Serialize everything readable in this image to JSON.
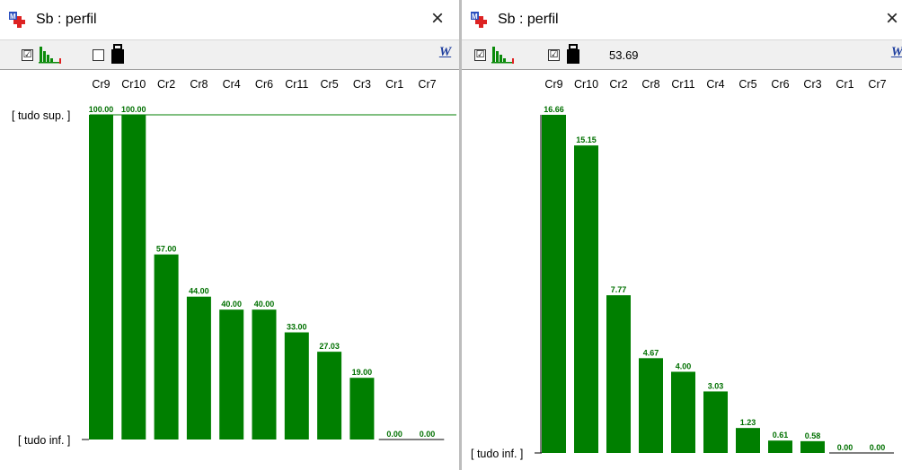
{
  "windows": [
    {
      "title": "Sb : perfil",
      "close_label": "×",
      "toolbar": {
        "checkbox1_mark": "☑",
        "checkbox2_mark": "",
        "value_label": ""
      },
      "upper_label": "[ tudo sup. ]",
      "lower_label": "[ tudo inf. ]"
    },
    {
      "title": "Sb : perfil",
      "close_label": "×",
      "toolbar": {
        "checkbox1_mark": "☑",
        "checkbox2_mark": "☑",
        "value_label": "53.69"
      },
      "upper_label": "",
      "lower_label": "[ tudo inf. ]"
    }
  ],
  "icons": {
    "app": "app-window-icon",
    "histogram": "histogram-icon",
    "weight": "weight-icon",
    "word": "word-export-icon"
  },
  "colors": {
    "bar": "#007f00",
    "label": "#007000",
    "axis": "#000000"
  },
  "chart_data": [
    {
      "type": "bar",
      "categories": [
        "Cr9",
        "Cr10",
        "Cr2",
        "Cr8",
        "Cr4",
        "Cr6",
        "Cr11",
        "Cr5",
        "Cr3",
        "Cr1",
        "Cr7"
      ],
      "values": [
        100.0,
        100.0,
        57.0,
        44.0,
        40.0,
        40.0,
        33.0,
        27.03,
        19.0,
        0.0,
        0.0
      ],
      "value_labels": [
        "100.00",
        "100.00",
        "57.00",
        "44.00",
        "40.00",
        "40.00",
        "33.00",
        "27.03",
        "19.00",
        "0.00",
        "0.00"
      ],
      "ylim": [
        0,
        100
      ],
      "upper_line": true,
      "title": "",
      "xlabel": "",
      "ylabel": ""
    },
    {
      "type": "bar",
      "categories": [
        "Cr9",
        "Cr10",
        "Cr2",
        "Cr8",
        "Cr11",
        "Cr4",
        "Cr5",
        "Cr6",
        "Cr3",
        "Cr1",
        "Cr7"
      ],
      "values": [
        16.66,
        15.15,
        7.77,
        4.67,
        4.0,
        3.03,
        1.23,
        0.61,
        0.58,
        0.0,
        0.0
      ],
      "value_labels": [
        "16.66",
        "15.15",
        "7.77",
        "4.67",
        "4.00",
        "3.03",
        "1.23",
        "0.61",
        "0.58",
        "0.00",
        "0.00"
      ],
      "ylim": [
        0,
        16.66
      ],
      "upper_line": false,
      "title": "",
      "xlabel": "",
      "ylabel": ""
    }
  ]
}
